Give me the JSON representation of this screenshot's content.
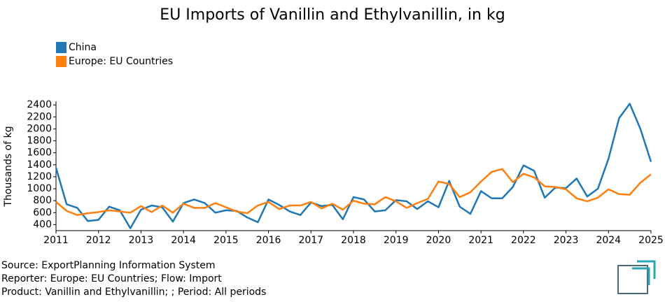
{
  "chart_data": {
    "type": "line",
    "title": "EU Imports of Vanillin and Ethylvanillin, in kg",
    "ylabel": "Thousands of kg",
    "x": [
      2011,
      2011.25,
      2011.5,
      2011.75,
      2012,
      2012.25,
      2012.5,
      2012.75,
      2013,
      2013.25,
      2013.5,
      2013.75,
      2014,
      2014.25,
      2014.5,
      2014.75,
      2015,
      2015.25,
      2015.5,
      2015.75,
      2016,
      2016.25,
      2016.5,
      2016.75,
      2017,
      2017.25,
      2017.5,
      2017.75,
      2018,
      2018.25,
      2018.5,
      2018.75,
      2019,
      2019.25,
      2019.5,
      2019.75,
      2020,
      2020.25,
      2020.5,
      2020.75,
      2021,
      2021.25,
      2021.5,
      2021.75,
      2022,
      2022.25,
      2022.5,
      2022.75,
      2023,
      2023.25,
      2023.5,
      2023.75,
      2024,
      2024.25,
      2024.5,
      2024.75,
      2025
    ],
    "series": [
      {
        "name": "China",
        "color": "#1f77b4",
        "values": [
          1350,
          740,
          680,
          460,
          480,
          700,
          640,
          340,
          650,
          720,
          690,
          450,
          760,
          820,
          760,
          600,
          640,
          630,
          520,
          440,
          820,
          730,
          620,
          560,
          770,
          710,
          730,
          490,
          860,
          820,
          620,
          640,
          810,
          790,
          660,
          790,
          690,
          1130,
          700,
          580,
          960,
          840,
          840,
          1030,
          1390,
          1300,
          850,
          1020,
          1010,
          1170,
          870,
          1000,
          1500,
          2180,
          2420,
          2000,
          1450
        ]
      },
      {
        "name": "Europe: EU Countries",
        "color": "#ff7f0e",
        "values": [
          780,
          630,
          560,
          590,
          610,
          640,
          620,
          600,
          710,
          610,
          720,
          600,
          750,
          680,
          680,
          760,
          690,
          620,
          590,
          720,
          780,
          660,
          720,
          720,
          780,
          670,
          750,
          650,
          800,
          750,
          740,
          860,
          790,
          680,
          760,
          830,
          1120,
          1080,
          860,
          940,
          1120,
          1280,
          1330,
          1110,
          1250,
          1190,
          1040,
          1030,
          990,
          840,
          790,
          850,
          990,
          910,
          900,
          1100,
          1240
        ]
      }
    ],
    "xlim": [
      2011,
      2025
    ],
    "xticks": [
      2011,
      2012,
      2013,
      2014,
      2015,
      2016,
      2017,
      2018,
      2019,
      2020,
      2021,
      2022,
      2023,
      2024,
      2025
    ],
    "ylim": [
      300,
      2460
    ],
    "yticks": [
      400,
      600,
      800,
      1000,
      1200,
      1400,
      1600,
      1800,
      2000,
      2200,
      2400
    ],
    "legend": "top-left",
    "grid": false
  },
  "footer": [
    "Source: ExportPlanning Information System",
    "Reporter: Europe: EU Countries; Flow: Import",
    "Product: Vanillin and Ethylvanillin; ; Period: All periods"
  ]
}
